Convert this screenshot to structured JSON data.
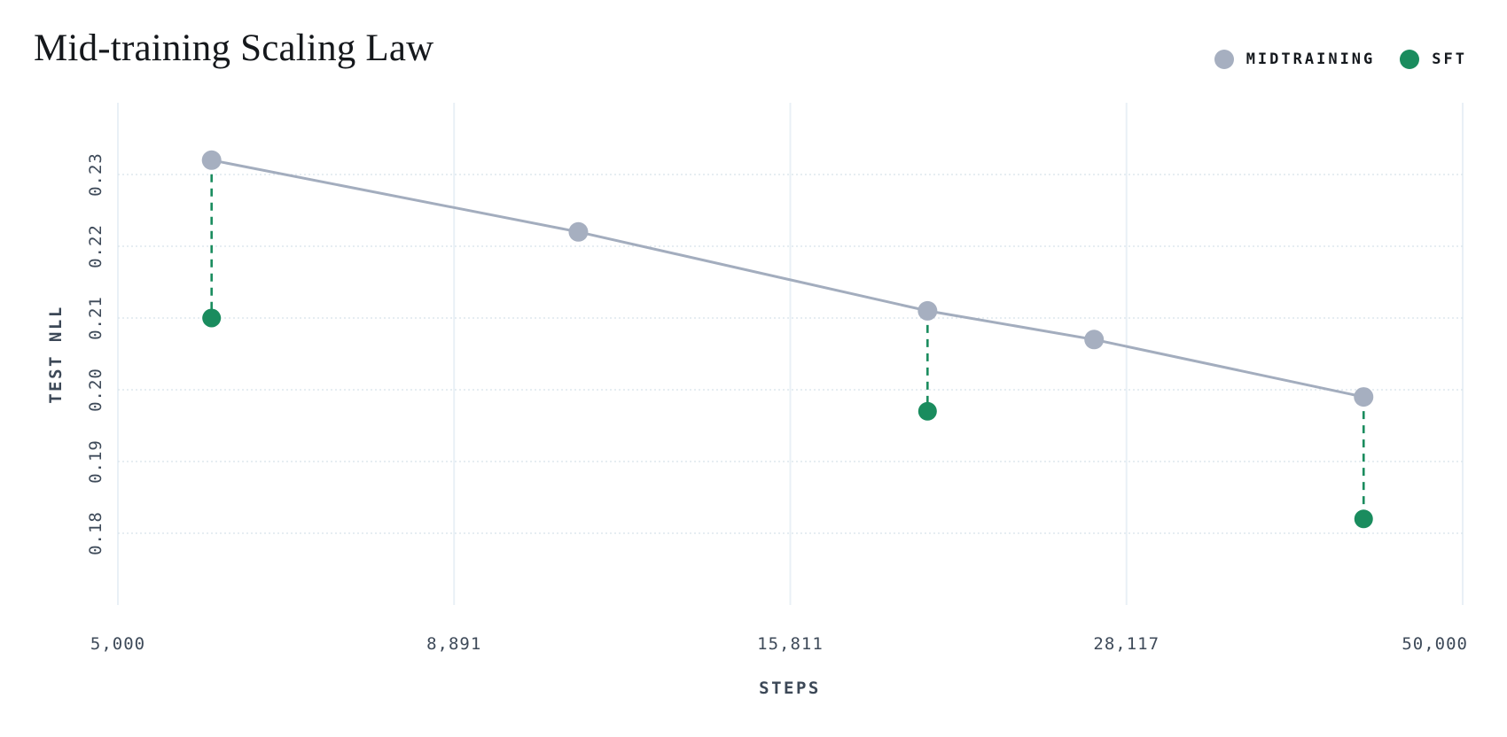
{
  "chart_data": {
    "type": "line",
    "title": "Mid-training Scaling Law",
    "xlabel": "STEPS",
    "ylabel": "TEST NLL",
    "x_scale": "log",
    "x_domain": [
      5000,
      50000
    ],
    "y_domain": [
      0.17,
      0.24
    ],
    "x_ticks": [
      5000,
      8891,
      15811,
      28117,
      50000
    ],
    "x_tick_labels": [
      "5,000",
      "8,891",
      "15,811",
      "28,117",
      "50,000"
    ],
    "y_ticks": [
      0.18,
      0.19,
      0.2,
      0.21,
      0.22,
      0.23
    ],
    "y_tick_labels": [
      "0.18",
      "0.19",
      "0.20",
      "0.21",
      "0.22",
      "0.23"
    ],
    "grid": true,
    "legend_position": "top-right",
    "series": [
      {
        "name": "MIDTRAINING",
        "color": "#a6afc0",
        "line_color": "#a3adbe",
        "style": "line+markers",
        "points": [
          {
            "steps": 5870,
            "test_nll": 0.232
          },
          {
            "steps": 11000,
            "test_nll": 0.222
          },
          {
            "steps": 20000,
            "test_nll": 0.211
          },
          {
            "steps": 26600,
            "test_nll": 0.207
          },
          {
            "steps": 42200,
            "test_nll": 0.199
          }
        ]
      },
      {
        "name": "SFT",
        "color": "#1a8c5e",
        "style": "markers",
        "points": [
          {
            "steps": 5870,
            "test_nll": 0.21
          },
          {
            "steps": 20000,
            "test_nll": 0.197
          },
          {
            "steps": 42200,
            "test_nll": 0.182
          }
        ]
      }
    ],
    "connectors": {
      "from_series": "MIDTRAINING",
      "to_series": "SFT",
      "line_style": "dashed",
      "color": "#1a8c5e"
    }
  }
}
